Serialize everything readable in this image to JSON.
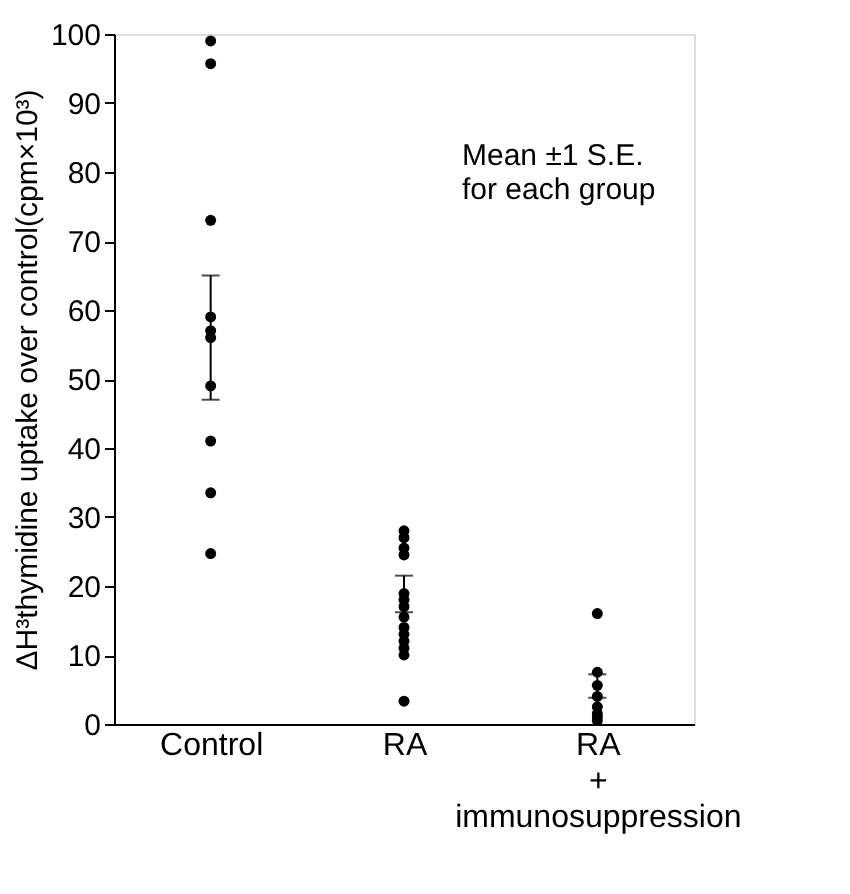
{
  "chart_data": {
    "type": "scatter",
    "ylabel": "ΔH³thymidine uptake over control(cpm×10³)",
    "categories": [
      "Control",
      "RA",
      "RA\n+\nimmunosuppression"
    ],
    "ylim": [
      0,
      100
    ],
    "yticks": [
      0,
      10,
      20,
      30,
      40,
      50,
      60,
      70,
      80,
      90,
      100
    ],
    "grid": false,
    "annotations": [
      "Mean ±1 S.E.\nfor each group"
    ],
    "series": [
      {
        "color": "#000000",
        "marker": "circle",
        "x": [
          "Control",
          "Control",
          "Control",
          "Control",
          "Control",
          "Control",
          "Control",
          "Control",
          "Control",
          "RA",
          "RA",
          "RA",
          "RA",
          "RA",
          "RA",
          "RA",
          "RA",
          "RA",
          "RA",
          "RA",
          "RA",
          "RA",
          "RA\n+\nimmunosuppression",
          "RA\n+\nimmunosuppression",
          "RA\n+\nimmunosuppression",
          "RA\n+\nimmunosuppression",
          "RA\n+\nimmunosuppression",
          "RA\n+\nimmunosuppression",
          "RA\n+\nimmunosuppression"
        ],
        "values": [
          99,
          95.7,
          73,
          59,
          57,
          49,
          41,
          33.5,
          24.7,
          28,
          27,
          25.5,
          24.5,
          18,
          17,
          15.5,
          14,
          13,
          12,
          11,
          10,
          3.3,
          16,
          7.5,
          4,
          2.5,
          1.5,
          1,
          0.5
        ]
      },
      {
        "color": "#000000",
        "values": [
          56,
          18.9,
          5.6
        ],
        "errors": [
          [
            47,
            65
          ],
          [
            16.2,
            21.5
          ],
          [
            3.8,
            7.2
          ]
        ]
      }
    ]
  }
}
